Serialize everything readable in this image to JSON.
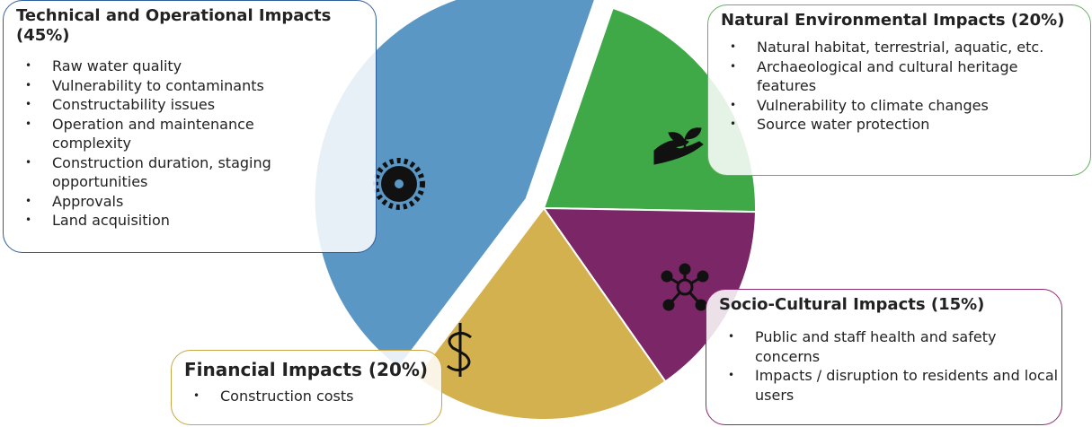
{
  "chart_data": {
    "type": "pie",
    "categories": [
      "Technical and Operational Impacts",
      "Natural Environmental Impacts",
      "Socio-Cultural Impacts",
      "Financial Impacts"
    ],
    "values": [
      45,
      20,
      15,
      20
    ],
    "value_labels": [
      "(45%)",
      "(20%)",
      "(15%)",
      "(20%)"
    ],
    "colors": [
      "#5b97c5",
      "#3fa847",
      "#7b2767",
      "#d4b14f"
    ],
    "border_colors": [
      "#2f5f9c",
      "#5fb35a",
      "#8a2b72",
      "#c9a646"
    ],
    "bullets": [
      [
        "Raw water quality",
        "Vulnerability to contaminants",
        "Constructability issues",
        "Operation and maintenance complexity",
        "Construction duration, staging opportunities",
        "Approvals",
        "Land acquisition"
      ],
      [
        "Natural habitat, terrestrial, aquatic, etc.",
        "Archaeological and cultural heritage features",
        "Vulnerability to climate changes",
        "Source water protection"
      ],
      [
        "Public and staff health and safety concerns",
        "Impacts / disruption to residents and local users"
      ],
      [
        "Construction costs"
      ]
    ]
  }
}
